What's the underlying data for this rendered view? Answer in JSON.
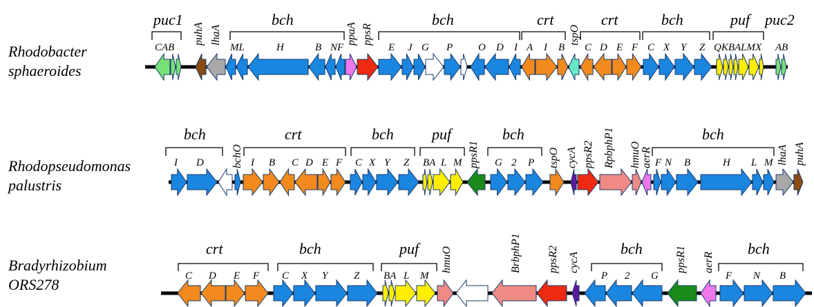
{
  "colors": {
    "bch": "#1a86e0",
    "crt": "#f28a1e",
    "puf": "#ffee00",
    "puc": "#77e077",
    "puhA": "#8b4c12",
    "lhaA": "#a8a8a8",
    "ppaA": "#ee77ee",
    "ppsR": "#ee2a10",
    "ppsR1": "#1a8a1a",
    "tspO": "#66e8c8",
    "cycA": "#5b1a9a",
    "bphP": "#f08a84",
    "hmuO": "#f08a84",
    "white": "#ffffff"
  },
  "rows": [
    {
      "species": [
        "Rhodobacter",
        "sphaeroides"
      ],
      "groups": [
        "puc1",
        "bch",
        "bch",
        "crt",
        "crt",
        "bch",
        "puf",
        "puc2"
      ],
      "sublabels": [
        "CAB",
        "ML",
        "H",
        "B",
        "NF",
        "E",
        "J",
        "G",
        "P",
        "O",
        "D",
        "I",
        "A",
        "I",
        "B",
        "C",
        "D",
        "E",
        "F",
        "C",
        "X",
        "Y",
        "Z",
        "QKBALMX",
        "AB"
      ],
      "rotated": [
        "puhA",
        "lhaA",
        "ppaA",
        "ppsR",
        "tspO"
      ]
    },
    {
      "species": [
        "Rhodopseudomonas",
        "palustris"
      ],
      "groups": [
        "bch",
        "crt",
        "bch",
        "puf",
        "bch",
        "bch"
      ],
      "sublabels": [
        "I",
        "D",
        "I",
        "B",
        "C",
        "D",
        "E",
        "F",
        "C",
        "X",
        "Y",
        "Z",
        "BA",
        "L",
        "M",
        "G",
        "2",
        "P",
        "F",
        "N",
        "B",
        "H",
        "L",
        "M"
      ],
      "rotated": [
        "bchO",
        "ppsR1",
        "tspO",
        "cycA",
        "ppsR2",
        "RpbphP1",
        "hmuO",
        "aerR",
        "lhaA",
        "puhA"
      ]
    },
    {
      "species": [
        "Bradyrhizobium",
        "ORS278"
      ],
      "groups": [
        "crt",
        "bch",
        "puf",
        "bch",
        "bch"
      ],
      "sublabels": [
        "C",
        "D",
        "E",
        "F",
        "C",
        "X",
        "Y",
        "Z",
        "BA",
        "L",
        "M",
        "P",
        "2",
        "G",
        "F",
        "N",
        "B"
      ],
      "rotated": [
        "hmuO",
        "BrbphP1",
        "ppsR2",
        "cycA",
        "ppsR1",
        "aerR"
      ]
    }
  ]
}
